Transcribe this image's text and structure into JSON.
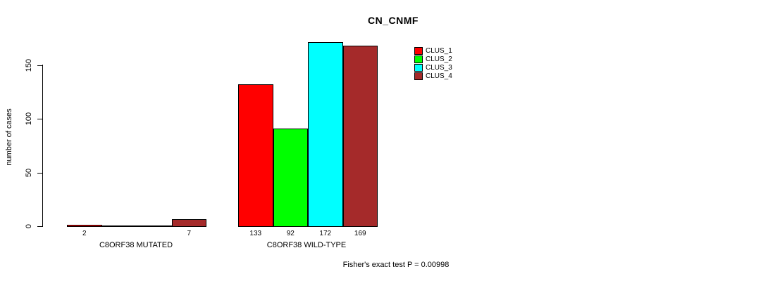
{
  "title": "CN_CNMF",
  "footer": "Fisher's exact test P = 0.00998",
  "chart_data": {
    "type": "bar",
    "title": "CN_CNMF",
    "xlabel": "",
    "ylabel": "number of cases",
    "groups": [
      "C8ORF38 MUTATED",
      "C8ORF38 WILD-TYPE"
    ],
    "series": [
      {
        "name": "CLUS_1",
        "color": "#FF0000",
        "values": [
          2,
          133
        ]
      },
      {
        "name": "CLUS_2",
        "color": "#00FF00",
        "values": [
          0,
          92
        ]
      },
      {
        "name": "CLUS_3",
        "color": "#00FFFF",
        "values": [
          0,
          172
        ]
      },
      {
        "name": "CLUS_4",
        "color": "#A52A2A",
        "values": [
          7,
          169
        ]
      }
    ],
    "value_labels": [
      "2",
      "7",
      "133",
      "92",
      "172",
      "169"
    ],
    "show_zero_value_labels": false,
    "yticks": [
      0,
      50,
      100,
      150
    ],
    "ylim": [
      0,
      172
    ],
    "grid": false,
    "legend_position": "top-right",
    "annotation": "Fisher's exact test P = 0.00998",
    "bar_border_color": "#000000",
    "background_color": "#FFFFFF"
  }
}
